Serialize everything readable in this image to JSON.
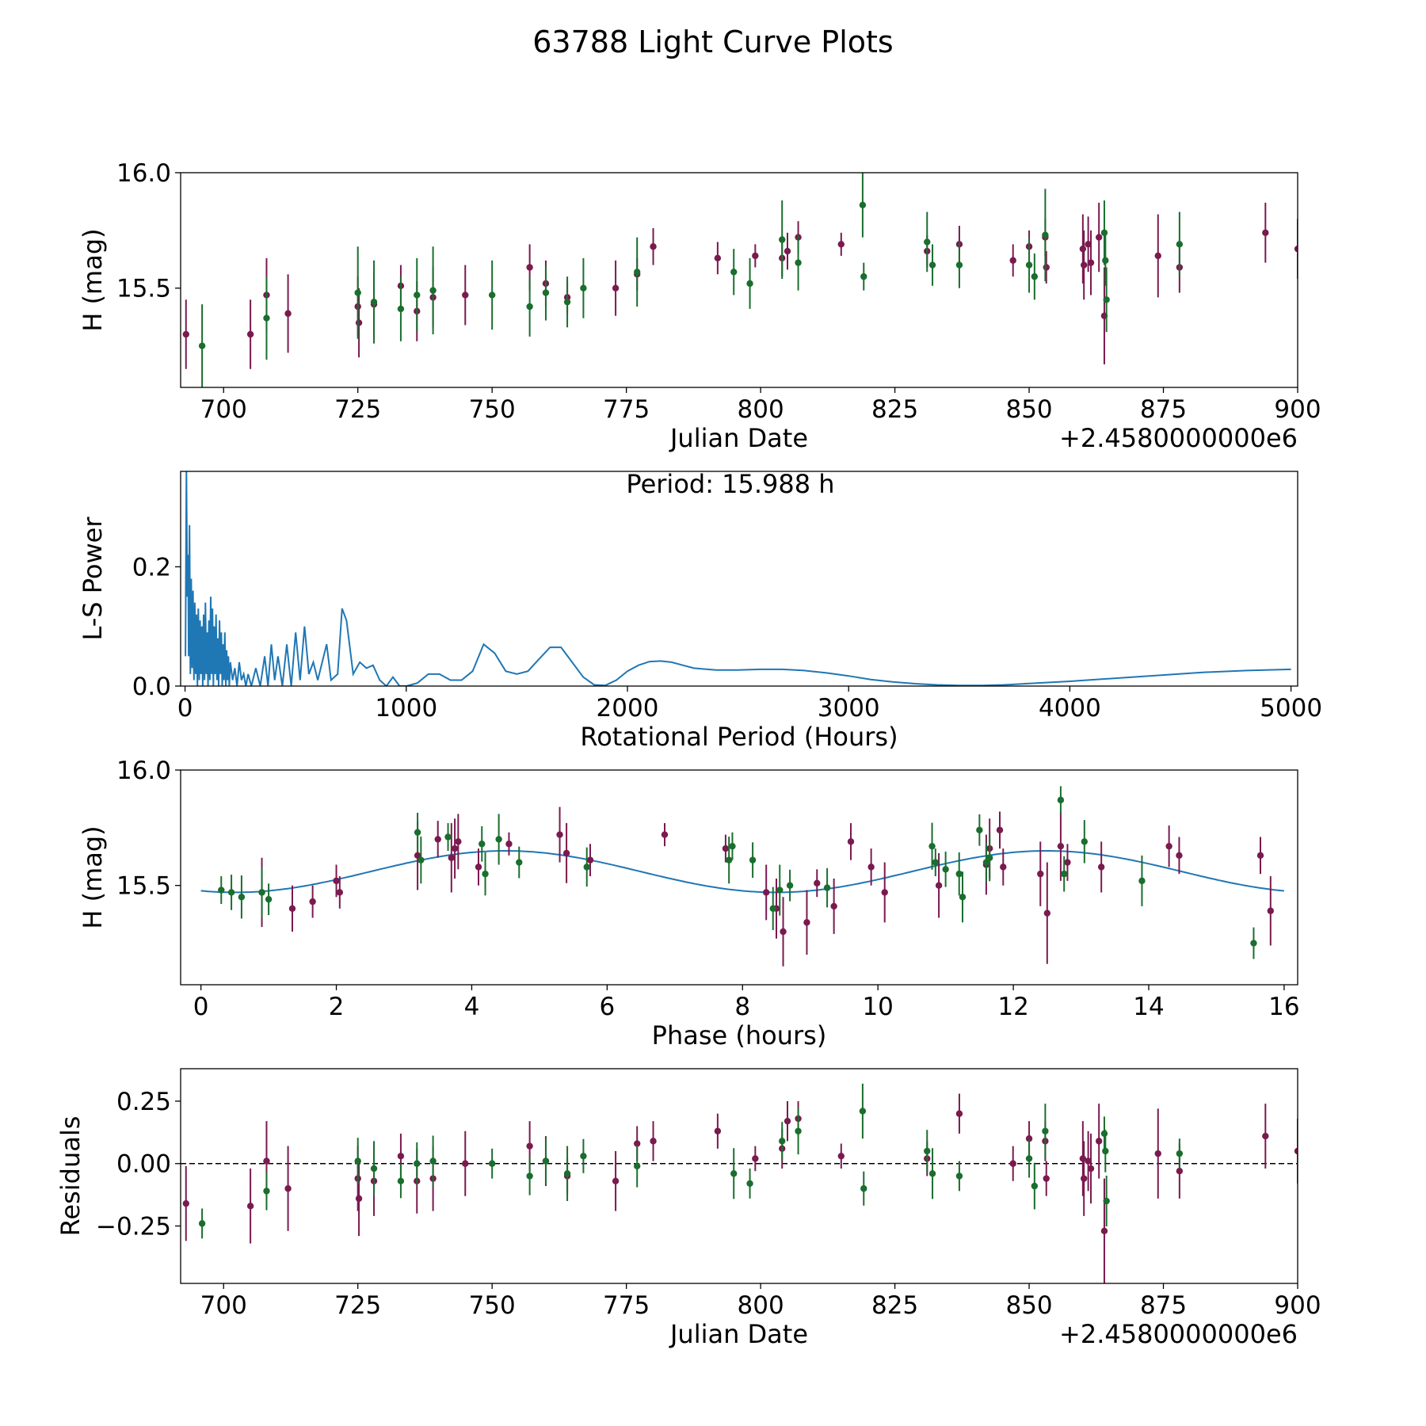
{
  "figure_title": "63788 Light Curve Plots",
  "colors": {
    "series_a": "#7a1a4f",
    "series_b": "#1a6e2e",
    "model": "#1f77b4",
    "zero": "#000000"
  },
  "chart_data": [
    {
      "id": "lightcurve",
      "type": "scatter",
      "xlabel": "Julian Date",
      "ylabel": "H (mag)",
      "offset_label": "+2.4580000000e6",
      "xlim": [
        692,
        900
      ],
      "ylim": [
        15.07,
        16.0
      ],
      "yinvert": false,
      "xticks": [
        700,
        725,
        750,
        775,
        800,
        825,
        850,
        875,
        900
      ],
      "xtick_labels": [
        "700",
        "725",
        "750",
        "775",
        "800",
        "825",
        "850",
        "875",
        "900"
      ],
      "yticks": [
        15.5,
        16.0
      ],
      "ytick_labels": [
        "15.5",
        "16.0"
      ],
      "series": [
        {
          "name": "series_a",
          "color": "#7a1a4f",
          "x": [
            693,
            705,
            708,
            712,
            725,
            725.2,
            728,
            733,
            736,
            739,
            745,
            757,
            760,
            764,
            773,
            777,
            780,
            792,
            799,
            804,
            805,
            807,
            815,
            831,
            837,
            847,
            850,
            853,
            853.2,
            860,
            860.2,
            861,
            861.5,
            863,
            864,
            874,
            878,
            894,
            900
          ],
          "y": [
            15.3,
            15.3,
            15.47,
            15.39,
            15.42,
            15.35,
            15.43,
            15.51,
            15.4,
            15.46,
            15.47,
            15.59,
            15.52,
            15.46,
            15.5,
            15.56,
            15.68,
            15.63,
            15.64,
            15.63,
            15.66,
            15.72,
            15.69,
            15.66,
            15.69,
            15.62,
            15.68,
            15.72,
            15.59,
            15.67,
            15.6,
            15.69,
            15.61,
            15.72,
            15.38,
            15.64,
            15.59,
            15.74,
            15.67
          ],
          "err": [
            0.15,
            0.15,
            0.16,
            0.17,
            0.13,
            0.15,
            0.14,
            0.09,
            0.13,
            0.13,
            0.13,
            0.1,
            0.1,
            0.07,
            0.12,
            0.07,
            0.08,
            0.07,
            0.05,
            0.08,
            0.08,
            0.07,
            0.05,
            0.07,
            0.08,
            0.07,
            0.07,
            0.08,
            0.07,
            0.15,
            0.15,
            0.12,
            0.14,
            0.15,
            0.21,
            0.18,
            0.11,
            0.13,
            0.13
          ]
        },
        {
          "name": "series_b",
          "color": "#1a6e2e",
          "x": [
            696,
            708,
            725,
            728,
            733,
            736,
            739,
            750,
            757,
            760,
            764,
            767,
            777,
            795,
            798,
            804,
            807,
            819,
            819.2,
            831,
            832,
            837,
            850,
            851,
            853,
            864,
            864.2,
            864.4,
            878
          ],
          "y": [
            15.25,
            15.37,
            15.48,
            15.44,
            15.41,
            15.47,
            15.49,
            15.47,
            15.42,
            15.48,
            15.44,
            15.5,
            15.57,
            15.57,
            15.52,
            15.71,
            15.61,
            15.86,
            15.55,
            15.7,
            15.6,
            15.6,
            15.6,
            15.55,
            15.73,
            15.74,
            15.62,
            15.45,
            15.69
          ],
          "err": [
            0.18,
            0.18,
            0.2,
            0.18,
            0.14,
            0.16,
            0.19,
            0.15,
            0.13,
            0.12,
            0.11,
            0.13,
            0.15,
            0.1,
            0.11,
            0.17,
            0.12,
            0.14,
            0.06,
            0.13,
            0.09,
            0.1,
            0.12,
            0.1,
            0.2,
            0.14,
            0.11,
            0.14,
            0.14
          ]
        }
      ]
    },
    {
      "id": "periodogram",
      "type": "line",
      "xlabel": "Rotational Period (Hours)",
      "ylabel": "L-S Power",
      "annotation": "Period: 15.988 h",
      "xlim": [
        -20,
        5030
      ],
      "ylim": [
        0.0,
        0.36
      ],
      "yinvert": false,
      "xticks": [
        0,
        1000,
        2000,
        3000,
        4000,
        5000
      ],
      "xtick_labels": [
        "0",
        "1000",
        "2000",
        "3000",
        "4000",
        "5000"
      ],
      "yticks": [
        0.0,
        0.2
      ],
      "ytick_labels": [
        "0.0",
        "0.2"
      ],
      "series": [
        {
          "name": "L-S power",
          "color": "#1f77b4",
          "x": [
            2,
            6,
            10,
            14,
            16,
            20,
            24,
            28,
            32,
            36,
            40,
            44,
            48,
            52,
            56,
            60,
            64,
            68,
            72,
            76,
            80,
            84,
            88,
            92,
            96,
            100,
            104,
            108,
            112,
            116,
            120,
            124,
            128,
            132,
            136,
            140,
            144,
            148,
            152,
            156,
            160,
            164,
            168,
            172,
            176,
            180,
            184,
            188,
            192,
            196,
            200,
            205,
            215,
            225,
            235,
            245,
            255,
            265,
            275,
            285,
            300,
            320,
            340,
            360,
            375,
            390,
            405,
            420,
            440,
            460,
            480,
            500,
            520,
            540,
            560,
            580,
            600,
            620,
            640,
            660,
            690,
            710,
            730,
            760,
            790,
            820,
            850,
            880,
            910,
            940,
            970,
            1000,
            1050,
            1100,
            1150,
            1200,
            1250,
            1300,
            1350,
            1400,
            1450,
            1500,
            1550,
            1600,
            1650,
            1700,
            1750,
            1800,
            1850,
            1900,
            1950,
            2000,
            2050,
            2100,
            2150,
            2200,
            2250,
            2300,
            2400,
            2500,
            2600,
            2700,
            2800,
            2900,
            3000,
            3100,
            3200,
            3300,
            3400,
            3500,
            3600,
            3700,
            3800,
            3900,
            4000,
            4200,
            4400,
            4600,
            4800,
            5000
          ],
          "y": [
            0.05,
            0.36,
            0.15,
            0.22,
            0.05,
            0.27,
            0.02,
            0.18,
            0.03,
            0.16,
            0.01,
            0.14,
            0.02,
            0.12,
            0.0,
            0.13,
            0.01,
            0.11,
            0.02,
            0.1,
            0.0,
            0.12,
            0.01,
            0.14,
            0.02,
            0.09,
            0.0,
            0.11,
            0.01,
            0.15,
            0.02,
            0.13,
            0.0,
            0.1,
            0.02,
            0.12,
            0.01,
            0.08,
            0.0,
            0.11,
            0.02,
            0.09,
            0.0,
            0.07,
            0.01,
            0.09,
            0.0,
            0.06,
            0.01,
            0.05,
            0.0,
            0.04,
            0.01,
            0.03,
            0.0,
            0.04,
            0.01,
            0.02,
            0.0,
            0.02,
            0.0,
            0.03,
            0.0,
            0.05,
            0.0,
            0.07,
            0.01,
            0.05,
            0.0,
            0.07,
            0.0,
            0.09,
            0.01,
            0.1,
            0.02,
            0.04,
            0.01,
            0.04,
            0.07,
            0.01,
            0.02,
            0.13,
            0.11,
            0.02,
            0.04,
            0.03,
            0.035,
            0.01,
            0.0,
            0.015,
            0.0,
            0.0,
            0.005,
            0.02,
            0.02,
            0.01,
            0.01,
            0.025,
            0.07,
            0.055,
            0.025,
            0.02,
            0.025,
            0.045,
            0.065,
            0.065,
            0.04,
            0.015,
            0.002,
            0.001,
            0.01,
            0.025,
            0.035,
            0.041,
            0.042,
            0.04,
            0.035,
            0.03,
            0.027,
            0.027,
            0.028,
            0.028,
            0.026,
            0.022,
            0.017,
            0.011,
            0.007,
            0.004,
            0.002,
            0.001,
            0.001,
            0.002,
            0.004,
            0.006,
            0.008,
            0.013,
            0.018,
            0.023,
            0.026,
            0.028
          ]
        }
      ]
    },
    {
      "id": "phase",
      "type": "scatter",
      "xlabel": "Phase (hours)",
      "ylabel": "H (mag)",
      "xlim": [
        -0.3,
        16.2
      ],
      "ylim": [
        15.07,
        16.0
      ],
      "yinvert": false,
      "xticks": [
        0,
        2,
        4,
        6,
        8,
        10,
        12,
        14,
        16
      ],
      "xtick_labels": [
        "0",
        "2",
        "4",
        "6",
        "8",
        "10",
        "12",
        "14",
        "16"
      ],
      "yticks": [
        15.5,
        16.0
      ],
      "ytick_labels": [
        "15.5",
        "16.0"
      ],
      "model": {
        "type": "sinusoid",
        "mean": 15.56,
        "amplitude": 0.09,
        "period": 7.994,
        "peak_phase": 4.5,
        "color": "#1f77b4",
        "x_start": 0,
        "x_end": 16
      },
      "series": [
        {
          "name": "series_a",
          "color": "#7a1a4f",
          "x": [
            0.9,
            1.35,
            1.65,
            2.0,
            2.05,
            3.2,
            3.5,
            3.7,
            3.75,
            3.8,
            4.1,
            4.55,
            5.3,
            5.4,
            5.75,
            6.85,
            7.75,
            8.35,
            8.5,
            8.6,
            8.95,
            9.1,
            9.35,
            9.6,
            9.9,
            10.1,
            10.9,
            11.6,
            11.65,
            11.8,
            11.85,
            12.4,
            12.5,
            12.7,
            12.8,
            13.3,
            14.3,
            14.45,
            15.65,
            15.8
          ],
          "y": [
            15.47,
            15.4,
            15.43,
            15.52,
            15.47,
            15.63,
            15.7,
            15.62,
            15.66,
            15.69,
            15.58,
            15.68,
            15.72,
            15.64,
            15.61,
            15.72,
            15.66,
            15.47,
            15.4,
            15.3,
            15.34,
            15.51,
            15.41,
            15.69,
            15.58,
            15.47,
            15.5,
            15.59,
            15.66,
            15.74,
            15.58,
            15.55,
            15.38,
            15.67,
            15.6,
            15.58,
            15.67,
            15.63,
            15.63,
            15.39
          ],
          "err": [
            0.15,
            0.1,
            0.07,
            0.07,
            0.07,
            0.15,
            0.08,
            0.15,
            0.13,
            0.12,
            0.08,
            0.05,
            0.12,
            0.13,
            0.07,
            0.05,
            0.06,
            0.12,
            0.13,
            0.15,
            0.14,
            0.06,
            0.12,
            0.08,
            0.08,
            0.13,
            0.14,
            0.13,
            0.13,
            0.08,
            0.08,
            0.14,
            0.22,
            0.15,
            0.08,
            0.11,
            0.09,
            0.08,
            0.08,
            0.15
          ]
        },
        {
          "name": "series_b",
          "color": "#1a6e2e",
          "x": [
            0.3,
            0.45,
            0.6,
            0.9,
            1.0,
            3.2,
            3.25,
            3.65,
            4.15,
            4.2,
            4.4,
            4.7,
            5.7,
            7.8,
            7.85,
            8.15,
            8.45,
            8.55,
            8.7,
            9.25,
            10.8,
            10.85,
            11.0,
            11.2,
            11.25,
            11.5,
            11.6,
            11.65,
            12.7,
            12.75,
            13.05,
            13.9,
            15.55
          ],
          "y": [
            15.48,
            15.47,
            15.45,
            15.47,
            15.44,
            15.73,
            15.61,
            15.71,
            15.68,
            15.55,
            15.7,
            15.6,
            15.58,
            15.61,
            15.67,
            15.61,
            15.4,
            15.48,
            15.5,
            15.49,
            15.67,
            15.6,
            15.57,
            15.55,
            15.45,
            15.74,
            15.6,
            15.62,
            15.87,
            15.55,
            15.69,
            15.52,
            15.25
          ]
        }
      ]
    },
    {
      "id": "residuals",
      "type": "scatter",
      "xlabel": "Julian Date",
      "ylabel": "Residuals",
      "offset_label": "+2.4580000000e6",
      "xlim": [
        692,
        900
      ],
      "ylim": [
        -0.48,
        0.38
      ],
      "yinvert": false,
      "zero_line": 0.0,
      "xticks": [
        700,
        725,
        750,
        775,
        800,
        825,
        850,
        875,
        900
      ],
      "xtick_labels": [
        "700",
        "725",
        "750",
        "775",
        "800",
        "825",
        "850",
        "875",
        "900"
      ],
      "yticks": [
        -0.25,
        0.0,
        0.25
      ],
      "ytick_labels": [
        "−0.25",
        "0.00",
        "0.25"
      ],
      "series": [
        {
          "name": "series_a",
          "color": "#7a1a4f",
          "x": [
            693,
            705,
            708,
            712,
            725,
            725.2,
            728,
            733,
            736,
            739,
            745,
            757,
            760,
            764,
            773,
            777,
            780,
            792,
            799,
            804,
            805,
            807,
            815,
            831,
            837,
            847,
            850,
            853,
            853.2,
            860,
            860.2,
            861,
            861.5,
            863,
            864,
            874,
            878,
            894,
            900
          ],
          "y": [
            -0.16,
            -0.17,
            0.01,
            -0.1,
            -0.06,
            -0.14,
            -0.07,
            0.03,
            -0.07,
            -0.06,
            0.0,
            0.07,
            0.01,
            -0.05,
            -0.07,
            0.08,
            0.09,
            0.13,
            0.02,
            0.06,
            0.17,
            0.18,
            0.03,
            0.02,
            0.2,
            0.0,
            0.1,
            0.09,
            -0.06,
            0.02,
            -0.06,
            0.01,
            -0.02,
            0.09,
            -0.27,
            0.04,
            -0.03,
            0.11,
            0.05
          ],
          "err": [
            0.15,
            0.15,
            0.16,
            0.17,
            0.13,
            0.15,
            0.14,
            0.09,
            0.13,
            0.13,
            0.13,
            0.1,
            0.1,
            0.07,
            0.12,
            0.07,
            0.08,
            0.07,
            0.05,
            0.08,
            0.08,
            0.07,
            0.05,
            0.07,
            0.08,
            0.07,
            0.07,
            0.08,
            0.07,
            0.15,
            0.15,
            0.12,
            0.14,
            0.15,
            0.21,
            0.18,
            0.11,
            0.13,
            0.13
          ]
        },
        {
          "name": "series_b",
          "color": "#1a6e2e",
          "x": [
            696,
            708,
            725,
            728,
            733,
            736,
            739,
            750,
            757,
            760,
            764,
            767,
            777,
            795,
            798,
            804,
            807,
            819,
            819.2,
            831,
            832,
            837,
            850,
            851,
            853,
            864,
            864.2,
            864.4,
            878
          ],
          "y": [
            -0.24,
            -0.11,
            0.01,
            -0.02,
            -0.07,
            0.0,
            0.01,
            0.0,
            -0.05,
            0.01,
            -0.04,
            0.03,
            -0.01,
            -0.04,
            -0.08,
            0.09,
            0.13,
            0.21,
            -0.1,
            0.05,
            -0.04,
            -0.05,
            0.02,
            -0.09,
            0.13,
            0.12,
            0.05,
            -0.15,
            0.04
          ]
        }
      ]
    }
  ]
}
